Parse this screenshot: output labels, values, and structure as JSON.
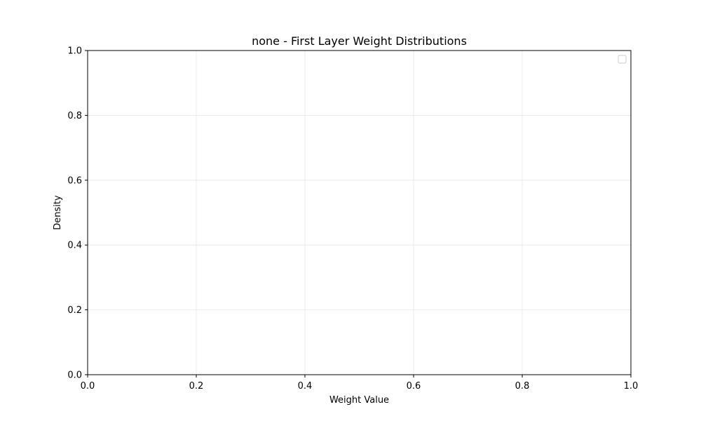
{
  "chart_data": {
    "type": "line",
    "title": "none - First Layer Weight Distributions",
    "xlabel": "Weight Value",
    "ylabel": "Density",
    "xlim": [
      0.0,
      1.0
    ],
    "ylim": [
      0.0,
      1.0
    ],
    "xticks": [
      "0.0",
      "0.2",
      "0.4",
      "0.6",
      "0.8",
      "1.0"
    ],
    "yticks": [
      "0.0",
      "0.2",
      "0.4",
      "0.6",
      "0.8",
      "1.0"
    ],
    "series": [],
    "grid": true,
    "legend": {
      "placement": "top-right",
      "entries": []
    },
    "colors": {
      "grid": "#e6e6e6",
      "axes": "#000000",
      "legend_border": "#cccccc"
    }
  }
}
